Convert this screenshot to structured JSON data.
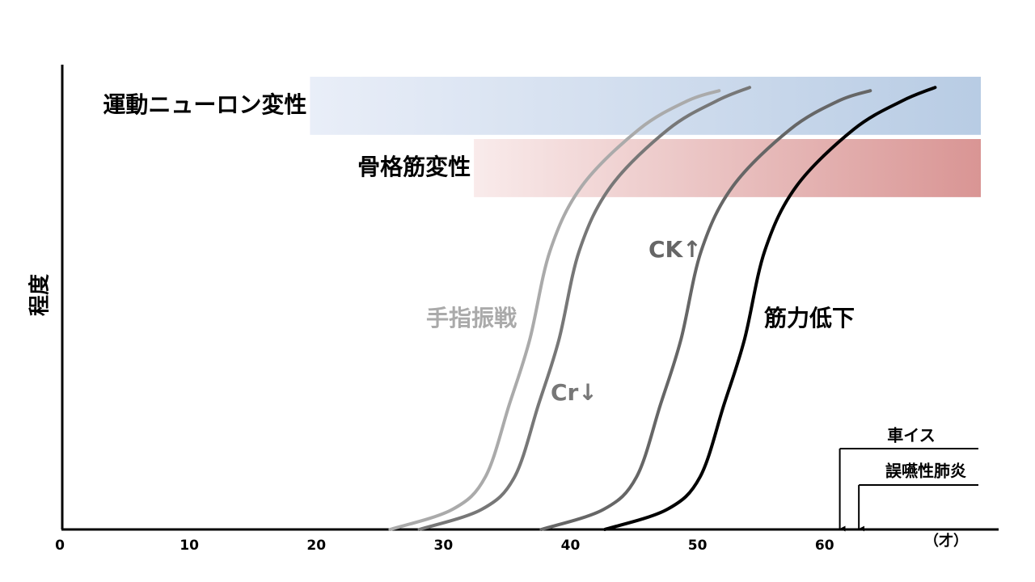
{
  "chart_data": {
    "type": "line",
    "y_label": "程度",
    "x_unit": "（才）",
    "xlim": [
      0,
      73.7
    ],
    "ylim": [
      0,
      100
    ],
    "xticks": [
      0,
      10,
      20,
      30,
      40,
      50,
      60
    ],
    "bands": [
      {
        "label": "運動ニューロン変性",
        "x": [
          19.5,
          72.3
        ],
        "y": [
          84.9,
          97.4
        ],
        "colors": [
          "#e9eef8",
          "#b8cce4"
        ]
      },
      {
        "label": "骨格筋変性",
        "x": [
          32.4,
          72.3
        ],
        "y": [
          71.5,
          84
        ],
        "colors": [
          "#f9ebeb",
          "#d99594"
        ]
      }
    ],
    "series": [
      {
        "name": "手指振戦",
        "color": "#aaaaaa",
        "x": [
          25.8,
          30.7,
          33.3,
          35.2,
          36.8,
          38.4,
          40.9,
          45.4,
          49.2,
          51.7
        ],
        "values": [
          0,
          4.3,
          11.3,
          27,
          40.9,
          60,
          73.9,
          86.1,
          92.2,
          94.4
        ]
      },
      {
        "name": "Cr↓",
        "color": "#777777",
        "x": [
          28.1,
          33.0,
          35.6,
          37.5,
          39.1,
          40.7,
          43.2,
          47.7,
          51.5,
          54.1
        ],
        "values": [
          0,
          4.3,
          11.3,
          27,
          40.9,
          60,
          73.9,
          86.1,
          92.2,
          95.1
        ]
      },
      {
        "name": "CK↑",
        "color": "#666666",
        "x": [
          37.7,
          42.6,
          45.2,
          47.1,
          48.7,
          50.3,
          52.8,
          57.3,
          61.1,
          63.6
        ],
        "values": [
          0,
          4.3,
          11.3,
          27,
          40.9,
          60,
          73.9,
          86.1,
          92.2,
          94.4
        ]
      },
      {
        "name": "筋力低下",
        "color": "#000000",
        "x": [
          42.7,
          47.6,
          50.2,
          52.1,
          53.7,
          55.3,
          57.8,
          62.3,
          66.1,
          68.7
        ],
        "values": [
          0,
          4.3,
          11.3,
          27,
          40.9,
          60,
          73.9,
          86.1,
          92.2,
          95.1
        ]
      }
    ],
    "events": [
      {
        "label": "車イス",
        "x": 61.2
      },
      {
        "label": "誤嚥性肺炎",
        "x": 62.7
      }
    ]
  }
}
